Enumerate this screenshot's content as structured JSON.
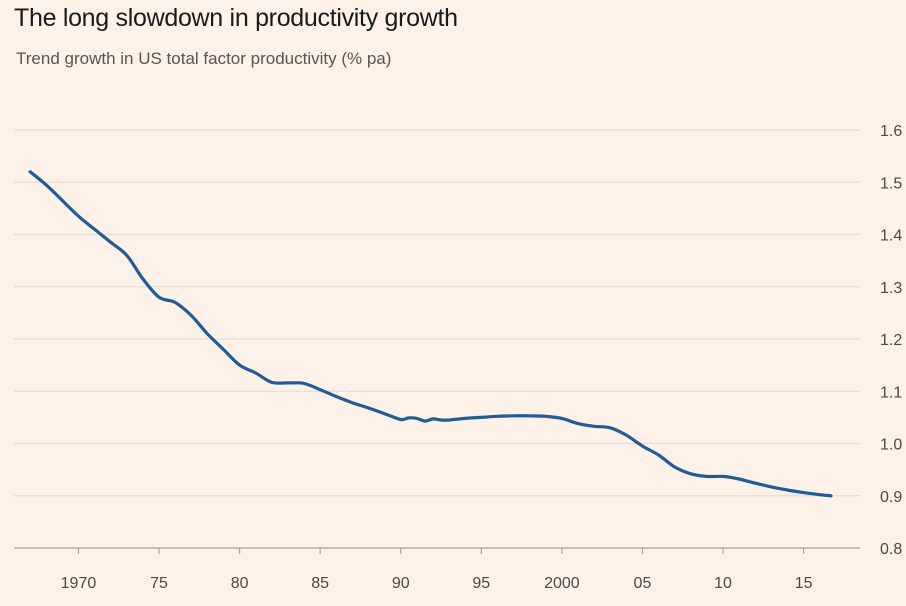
{
  "chart_data": {
    "type": "line",
    "title": "The long slowdown in productivity growth",
    "subtitle": "Trend growth in US total factor productivity (% pa)",
    "xlabel": "",
    "ylabel": "",
    "xlim": [
      1966,
      2018.5
    ],
    "ylim": [
      0.8,
      1.6
    ],
    "y_ticks": [
      0.8,
      0.9,
      1.0,
      1.1,
      1.2,
      1.3,
      1.4,
      1.5,
      1.6
    ],
    "y_tick_labels": [
      "0.8",
      "0.9",
      "1.0",
      "1.1",
      "1.2",
      "1.3",
      "1.4",
      "1.5",
      "1.6"
    ],
    "y_axis_position": "right",
    "x_ticks": [
      1970,
      1975,
      1980,
      1985,
      1990,
      1995,
      2000,
      2005,
      2010,
      2015
    ],
    "x_tick_labels": [
      "1970",
      "75",
      "80",
      "85",
      "90",
      "95",
      "2000",
      "05",
      "10",
      "15"
    ],
    "grid": "horizontal",
    "line_color": "#1f5c99",
    "series": [
      {
        "x": [
          1967.0,
          1968.0,
          1969.0,
          1970.0,
          1971.0,
          1972.0,
          1973.0,
          1974.0,
          1975.0,
          1976.0,
          1977.0,
          1978.0,
          1979.0,
          1980.0,
          1981.0,
          1982.0,
          1983.0,
          1984.0,
          1985.0,
          1986.0,
          1987.0,
          1988.0,
          1989.0,
          1990.0,
          1990.5,
          1991.0,
          1991.5,
          1992.0,
          1992.5,
          1993.0,
          1994.0,
          1995.0,
          1996.0,
          1997.0,
          1998.0,
          1999.0,
          2000.0,
          2001.0,
          2002.0,
          2003.0,
          2004.0,
          2005.0,
          2006.0,
          2007.0,
          2008.0,
          2009.0,
          2010.0,
          2011.0,
          2012.0,
          2013.0,
          2014.0,
          2015.0,
          2016.0,
          2016.7
        ],
        "y": [
          1.52,
          1.495,
          1.465,
          1.435,
          1.41,
          1.385,
          1.36,
          1.315,
          1.28,
          1.27,
          1.245,
          1.21,
          1.18,
          1.15,
          1.135,
          1.117,
          1.116,
          1.115,
          1.103,
          1.09,
          1.078,
          1.068,
          1.057,
          1.046,
          1.049,
          1.048,
          1.043,
          1.047,
          1.045,
          1.045,
          1.048,
          1.05,
          1.052,
          1.053,
          1.053,
          1.052,
          1.048,
          1.038,
          1.033,
          1.03,
          1.016,
          0.995,
          0.978,
          0.955,
          0.942,
          0.937,
          0.937,
          0.932,
          0.924,
          0.917,
          0.911,
          0.906,
          0.902,
          0.9
        ]
      }
    ]
  }
}
